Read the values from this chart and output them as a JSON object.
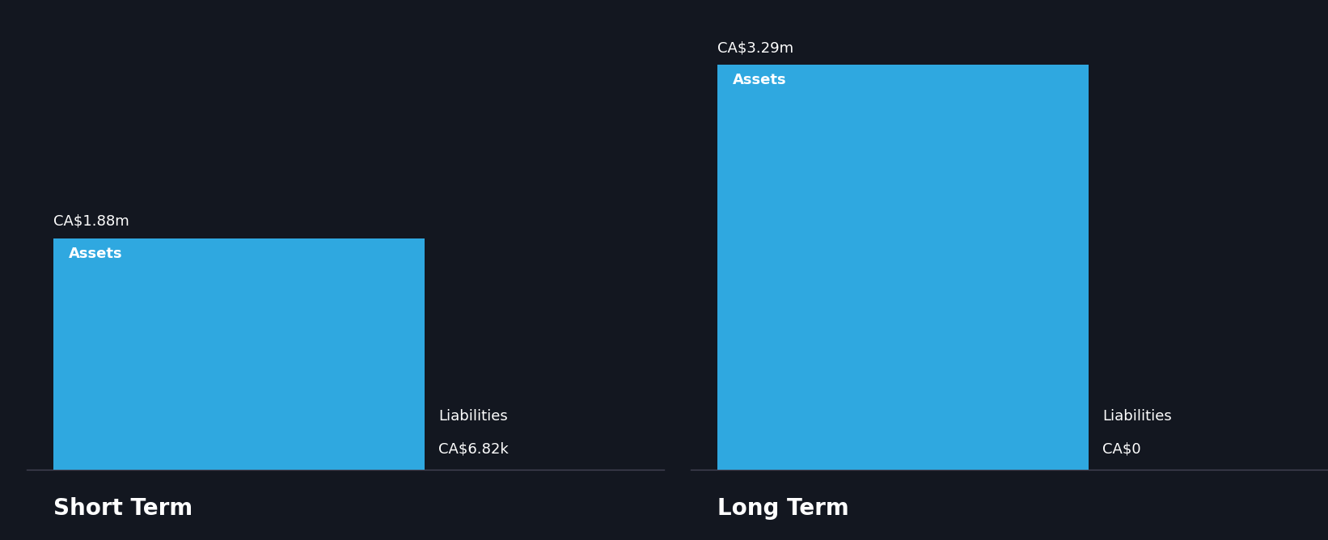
{
  "background_color": "#131720",
  "bar_color": "#2fa8e0",
  "text_color": "#ffffff",
  "sections": [
    {
      "label": "Short Term",
      "asset_value": 1.88,
      "asset_label": "CA$1.88m",
      "asset_inner_label": "Assets",
      "liability_value": 0.00682,
      "liability_label": "CA$6.82k",
      "liability_inner_label": "Liabilities"
    },
    {
      "label": "Long Term",
      "asset_value": 3.29,
      "asset_label": "CA$3.29m",
      "asset_inner_label": "Assets",
      "liability_value": 0,
      "liability_label": "CA$0",
      "liability_inner_label": "Liabilities"
    }
  ],
  "max_value": 3.29,
  "label_fontsize": 13,
  "inner_label_fontsize": 13,
  "section_label_fontsize": 20,
  "value_label_fontsize": 13
}
